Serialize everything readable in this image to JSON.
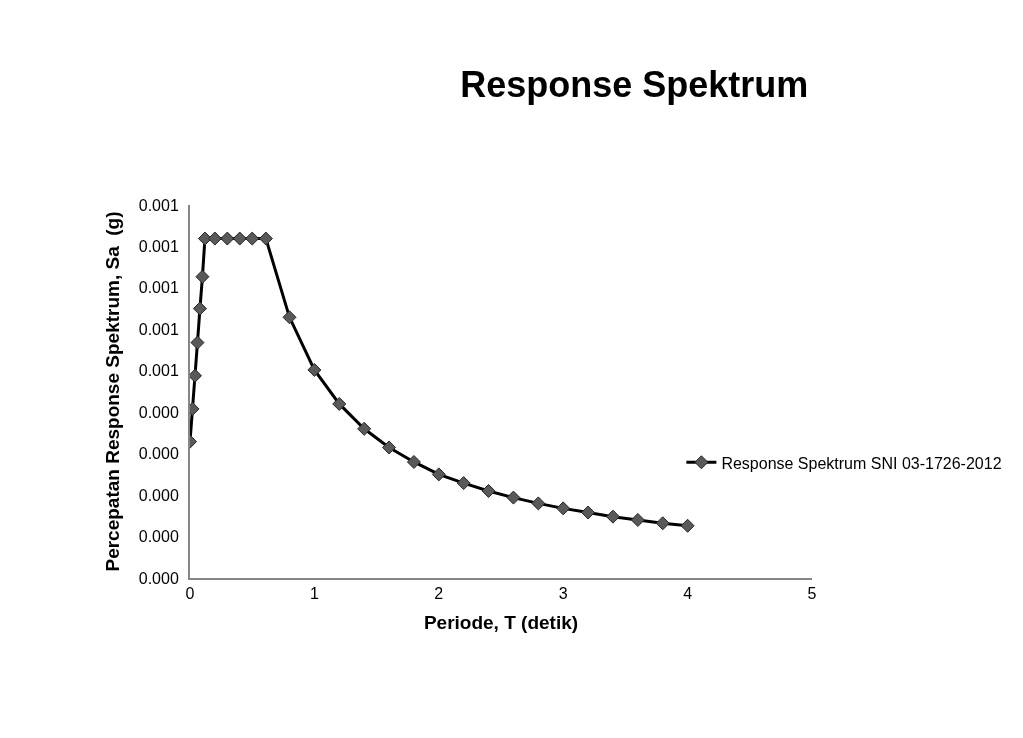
{
  "chart_data": {
    "type": "line",
    "title": "Response Spektrum",
    "xlabel": "Periode, T (detik)",
    "ylabel": "Percepatan Response Spektrum, Sa  (g)",
    "x": [
      0,
      0.02,
      0.04,
      0.06,
      0.08,
      0.1,
      0.12,
      0.2,
      0.3,
      0.4,
      0.5,
      0.61,
      0.8,
      1.0,
      1.2,
      1.4,
      1.6,
      1.8,
      2.0,
      2.2,
      2.4,
      2.6,
      2.8,
      3.0,
      3.2,
      3.4,
      3.6,
      3.8,
      4.0
    ],
    "series": [
      {
        "name": "Response Spektrum SNI 03-1726-2012",
        "color": "#000000",
        "values": [
          0.000329,
          0.000408,
          0.000488,
          0.000568,
          0.00065,
          0.000727,
          0.000819,
          0.000819,
          0.000819,
          0.000819,
          0.000819,
          0.000819,
          0.000629,
          0.000502,
          0.00042,
          0.00036,
          0.000315,
          0.00028,
          0.00025,
          0.000229,
          0.00021,
          0.000194,
          0.00018,
          0.000168,
          0.000158,
          0.000148,
          0.00014,
          0.000132,
          0.000126
        ]
      }
    ],
    "marker": "diamond",
    "line_style": "solid",
    "grid": false,
    "legend": "right",
    "xlim": [
      0,
      5
    ],
    "xticks": [
      0,
      1,
      2,
      3,
      4,
      5
    ],
    "ylim": [
      0,
      0.0009
    ],
    "yticks": [
      {
        "value": 0,
        "label": "0.000"
      },
      {
        "value": 0.0001,
        "label": "0.000"
      },
      {
        "value": 0.0002,
        "label": "0.000"
      },
      {
        "value": 0.0003,
        "label": "0.000"
      },
      {
        "value": 0.0004,
        "label": "0.000"
      },
      {
        "value": 0.0005,
        "label": "0.001"
      },
      {
        "value": 0.0006,
        "label": "0.001"
      },
      {
        "value": 0.0007,
        "label": "0.001"
      },
      {
        "value": 0.0008,
        "label": "0.001"
      },
      {
        "value": 0.0009,
        "label": "0.001"
      }
    ]
  }
}
